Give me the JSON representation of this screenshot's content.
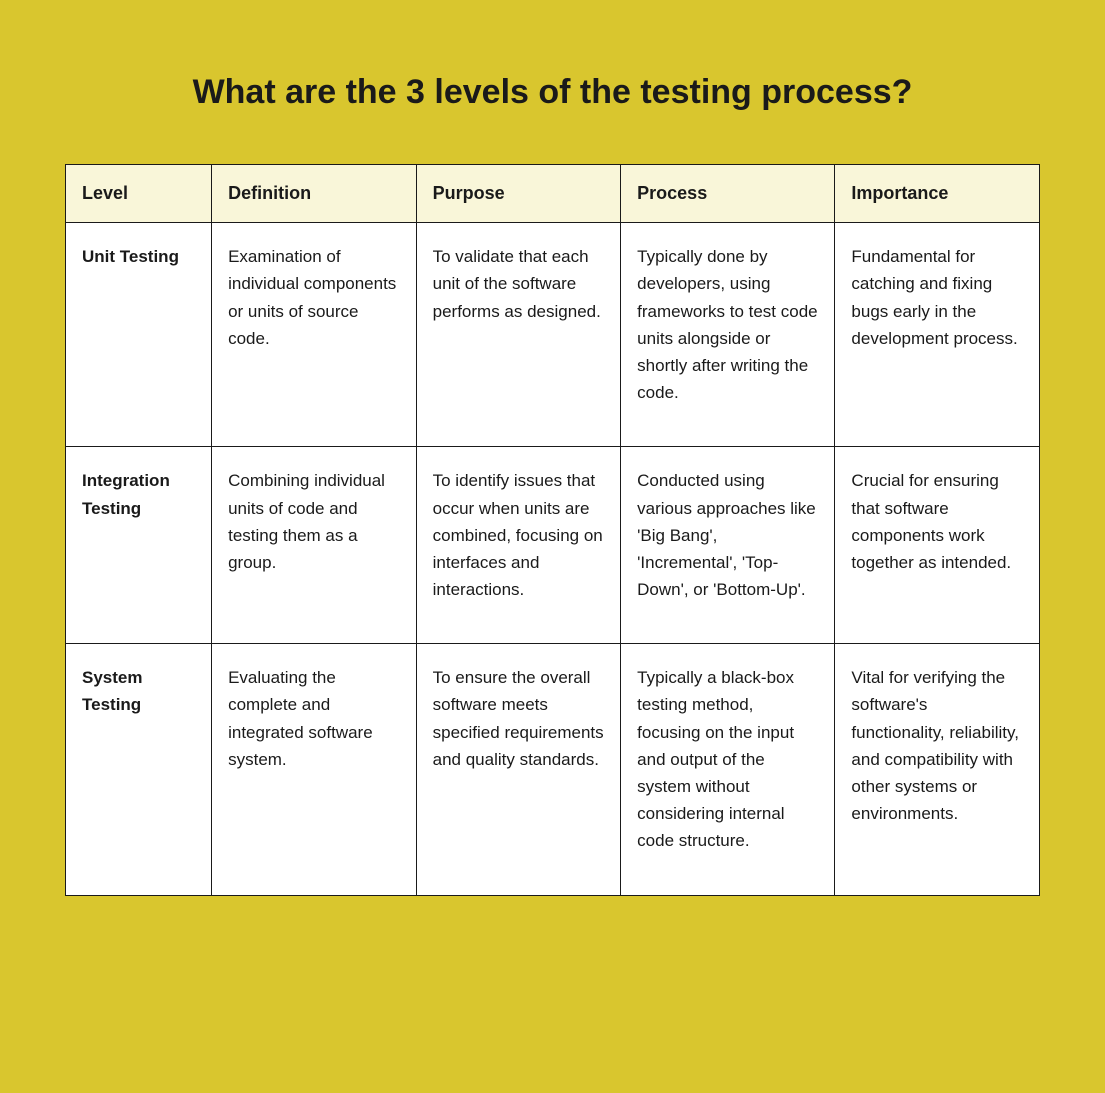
{
  "title": "What are the 3 levels of the testing process?",
  "columns": [
    "Level",
    "Definition",
    "Purpose",
    "Process",
    "Importance"
  ],
  "rows": [
    {
      "level": "Unit Testing",
      "definition": "Examination of individual components or units of source code.",
      "purpose": "To validate that each unit of the software performs as designed.",
      "process": "Typically done by developers, using frameworks to test code units alongside or shortly after writing the code.",
      "importance": "Fundamental for catching and fixing bugs early in the development process."
    },
    {
      "level": "Integration Testing",
      "definition": "Combining individual units of code and testing them as a group.",
      "purpose": "To identify issues that occur when units are combined, focusing on interfaces and interactions.",
      "process": "Conducted using various approaches like 'Big Bang', 'Incremental', 'Top-Down', or 'Bottom-Up'.",
      "importance": "Crucial for ensuring that software components work together as intended."
    },
    {
      "level": "System Testing",
      "definition": "Evaluating the complete and integrated software system.",
      "purpose": "To ensure the overall software meets specified requirements and quality standards.",
      "process": "Typically a black-box testing method, focusing on the input and output of the system without considering internal code structure.",
      "importance": " Vital for verifying the software's functionality, reliability, and compatibility with other systems or environments."
    }
  ],
  "style": {
    "background_color": "#d9c62e",
    "table_bg": "#ffffff",
    "header_bg": "#f9f6d9",
    "border_color": "#1a1a1a",
    "title_fontsize": 34,
    "header_fontsize": 18,
    "cell_fontsize": 17,
    "font_family": "-apple-system, sans-serif",
    "column_widths_pct": [
      15,
      21,
      21,
      22,
      21
    ]
  }
}
